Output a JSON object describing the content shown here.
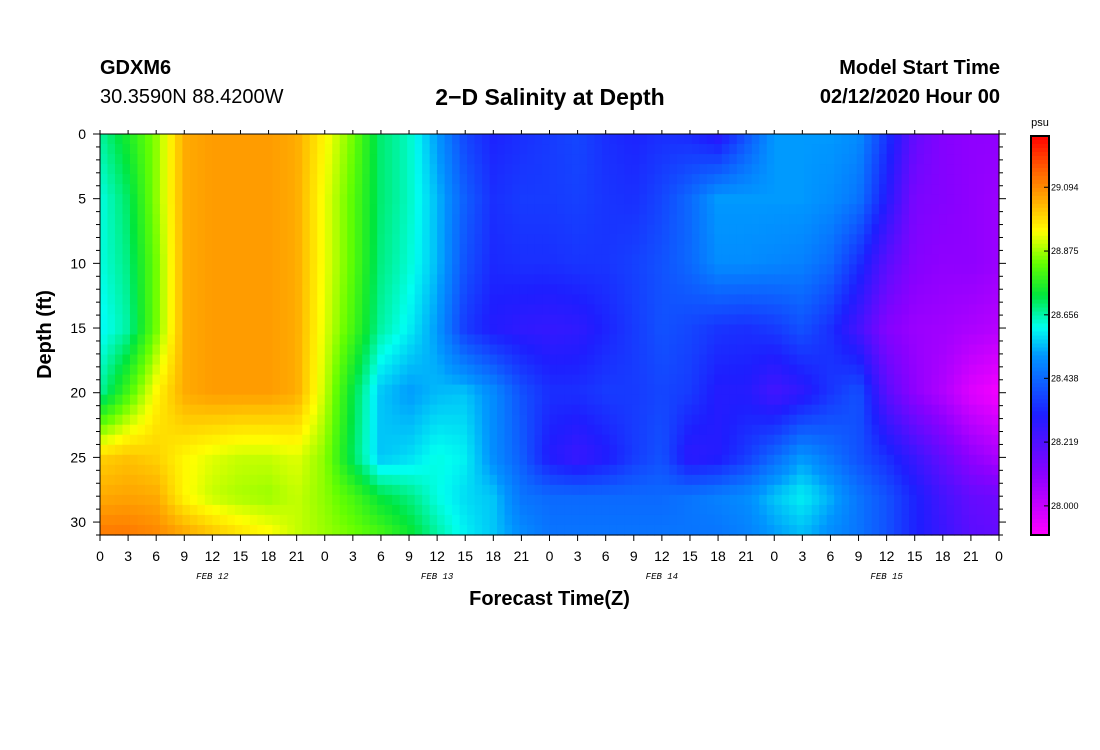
{
  "header": {
    "station": "GDXM6",
    "coords": "30.3590N 88.4200W",
    "title": "2−D Salinity at Depth",
    "model_start_label": "Model Start Time",
    "model_start_value": "02/12/2020 Hour 00"
  },
  "chart_data": {
    "type": "heatmap",
    "title": "2−D Salinity at Depth",
    "xlabel": "Forecast Time(Z)",
    "ylabel": "Depth (ft)",
    "x_tick_labels": [
      "0",
      "3",
      "6",
      "9",
      "12",
      "15",
      "18",
      "21",
      "0",
      "3",
      "6",
      "9",
      "12",
      "15",
      "18",
      "21",
      "0",
      "3",
      "6",
      "9",
      "12",
      "15",
      "18",
      "21",
      "0",
      "3",
      "6",
      "9",
      "12",
      "15",
      "18",
      "21",
      "0"
    ],
    "day_labels": [
      "FEB 12",
      "FEB 13",
      "FEB 14",
      "FEB 15"
    ],
    "xlim_hours": [
      0,
      96
    ],
    "ylim_ft": [
      0,
      31
    ],
    "y_ticks": [
      0,
      5,
      10,
      15,
      20,
      25,
      30
    ],
    "colorbar": {
      "unit": "psu",
      "min": 27.9,
      "max": 29.27,
      "tick_values": [
        29.094,
        28.875,
        28.656,
        28.438,
        28.219,
        28.0
      ],
      "tick_labels": [
        "29.094",
        "28.875",
        "28.656",
        "28.438",
        "28.219",
        "28.000"
      ]
    },
    "depths_ft": [
      0,
      5,
      10,
      15,
      20,
      25,
      28,
      31
    ],
    "times_hours": [
      0,
      3,
      6,
      9,
      12,
      15,
      18,
      21,
      24,
      27,
      30,
      33,
      36,
      39,
      42,
      45,
      48,
      51,
      54,
      57,
      60,
      63,
      66,
      69,
      72,
      75,
      78,
      81,
      84,
      87,
      90,
      93,
      96
    ],
    "salinity": [
      [
        28.66,
        28.75,
        28.86,
        29.05,
        29.07,
        29.07,
        29.07,
        29.05,
        28.95,
        28.84,
        28.69,
        28.64,
        28.52,
        28.38,
        28.32,
        28.34,
        28.36,
        28.38,
        28.34,
        28.32,
        28.34,
        28.33,
        28.28,
        28.4,
        28.52,
        28.52,
        28.52,
        28.5,
        28.35,
        28.18,
        28.12,
        28.1,
        28.1
      ],
      [
        28.62,
        28.7,
        28.86,
        29.05,
        29.07,
        29.07,
        29.07,
        29.05,
        28.93,
        28.82,
        28.69,
        28.64,
        28.55,
        28.42,
        28.34,
        28.36,
        28.36,
        28.37,
        28.35,
        28.34,
        28.38,
        28.44,
        28.52,
        28.52,
        28.52,
        28.52,
        28.5,
        28.46,
        28.3,
        28.14,
        28.12,
        28.1,
        28.08
      ],
      [
        28.62,
        28.68,
        28.84,
        29.05,
        29.07,
        29.07,
        29.07,
        29.05,
        28.93,
        28.82,
        28.68,
        28.63,
        28.55,
        28.4,
        28.33,
        28.34,
        28.34,
        28.35,
        28.35,
        28.37,
        28.4,
        28.44,
        28.5,
        28.5,
        28.49,
        28.48,
        28.44,
        28.34,
        28.2,
        28.12,
        28.1,
        28.1,
        28.08
      ],
      [
        28.6,
        28.66,
        28.84,
        29.05,
        29.07,
        29.07,
        29.07,
        29.05,
        28.92,
        28.8,
        28.66,
        28.6,
        28.52,
        28.36,
        28.3,
        28.28,
        28.27,
        28.28,
        28.32,
        28.36,
        28.4,
        28.38,
        28.35,
        28.34,
        28.36,
        28.4,
        28.34,
        28.24,
        28.12,
        28.08,
        28.07,
        28.05,
        28.03
      ],
      [
        28.66,
        28.8,
        28.95,
        29.05,
        29.07,
        29.07,
        29.07,
        29.05,
        28.9,
        28.72,
        28.56,
        28.52,
        28.55,
        28.56,
        28.5,
        28.4,
        28.34,
        28.34,
        28.36,
        28.36,
        28.38,
        28.36,
        28.3,
        28.3,
        28.24,
        28.28,
        28.35,
        28.4,
        28.2,
        28.1,
        28.04,
        27.96,
        27.92
      ],
      [
        29.0,
        29.02,
        29.0,
        28.95,
        28.92,
        28.9,
        28.9,
        28.92,
        28.86,
        28.7,
        28.56,
        28.58,
        28.62,
        28.6,
        28.5,
        28.42,
        28.3,
        28.26,
        28.3,
        28.36,
        28.4,
        28.28,
        28.3,
        28.36,
        28.44,
        28.52,
        28.46,
        28.4,
        28.34,
        28.26,
        28.18,
        28.1,
        28.05
      ],
      [
        29.05,
        29.06,
        29.05,
        28.95,
        28.9,
        28.88,
        28.87,
        28.9,
        28.86,
        28.8,
        28.72,
        28.68,
        28.62,
        28.58,
        28.56,
        28.46,
        28.44,
        28.44,
        28.44,
        28.44,
        28.44,
        28.46,
        28.48,
        28.5,
        28.56,
        28.6,
        28.54,
        28.46,
        28.4,
        28.32,
        28.24,
        28.18,
        28.16
      ],
      [
        29.12,
        29.12,
        29.1,
        29.06,
        29.02,
        28.98,
        28.95,
        28.9,
        28.87,
        28.84,
        28.8,
        28.74,
        28.66,
        28.6,
        28.56,
        28.5,
        28.46,
        28.46,
        28.46,
        28.46,
        28.46,
        28.46,
        28.46,
        28.48,
        28.52,
        28.55,
        28.5,
        28.46,
        28.4,
        28.32,
        28.26,
        28.2,
        28.18
      ]
    ]
  }
}
